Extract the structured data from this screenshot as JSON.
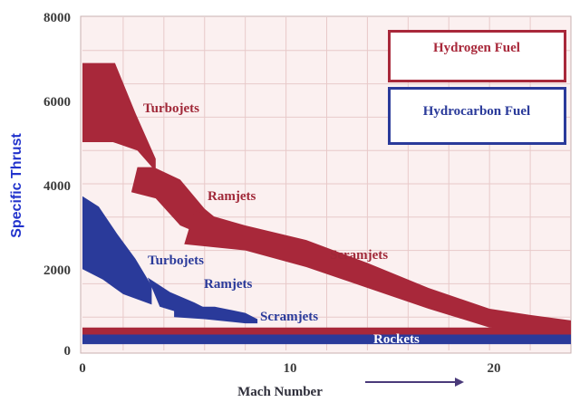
{
  "chart_data": {
    "type": "area",
    "title": "",
    "xlabel": "Mach Number",
    "ylabel": "Specific Thrust",
    "xlim": [
      0,
      24
    ],
    "ylim": [
      0,
      8000
    ],
    "x_ticks": [
      "0",
      "10",
      "20"
    ],
    "y_ticks": [
      "0",
      "2000",
      "4000",
      "6000",
      "8000"
    ],
    "grid": true,
    "legend_placement": "top-right",
    "legend": [
      {
        "name": "Hydrogen Fuel",
        "color": "#a8283a"
      },
      {
        "name": "Hydrocarbon Fuel",
        "color": "#2a3a9a"
      }
    ],
    "colors": {
      "background": "#fbf0f0",
      "grid": "#e8c9c9",
      "hydrogen": "#a8283a",
      "hydrocarbon": "#2a3a9a",
      "axis_title": "#2233cc"
    },
    "series": [
      {
        "fuel": "Hydrogen Fuel",
        "label": "Turbojets",
        "upper": [
          [
            0,
            6900
          ],
          [
            1.6,
            6900
          ],
          [
            2.6,
            5700
          ],
          [
            3.6,
            4600
          ]
        ],
        "lower": [
          [
            0,
            5000
          ],
          [
            1.5,
            5000
          ],
          [
            2.7,
            4800
          ],
          [
            3.6,
            4300
          ]
        ]
      },
      {
        "fuel": "Hydrogen Fuel",
        "label": "Ramjets",
        "upper": [
          [
            2.7,
            4400
          ],
          [
            3.5,
            4400
          ],
          [
            4.8,
            4100
          ],
          [
            6.0,
            3400
          ],
          [
            7.0,
            3000
          ]
        ],
        "lower": [
          [
            2.4,
            3800
          ],
          [
            3.6,
            3650
          ],
          [
            4.8,
            3000
          ],
          [
            6.0,
            2750
          ],
          [
            7.0,
            2700
          ]
        ]
      },
      {
        "fuel": "Hydrogen Fuel",
        "label": "Scramjets",
        "upper": [
          [
            5.5,
            3350
          ],
          [
            8,
            3000
          ],
          [
            11,
            2650
          ],
          [
            14,
            2100
          ],
          [
            17,
            1500
          ],
          [
            20,
            1000
          ],
          [
            22,
            850
          ],
          [
            24,
            720
          ]
        ],
        "lower": [
          [
            5.0,
            2550
          ],
          [
            8,
            2400
          ],
          [
            11,
            2000
          ],
          [
            14,
            1500
          ],
          [
            17,
            1000
          ],
          [
            20,
            550
          ],
          [
            22,
            470
          ],
          [
            24,
            420
          ]
        ]
      },
      {
        "fuel": "Hydrocarbon Fuel",
        "label": "Turbojets",
        "upper": [
          [
            0,
            3700
          ],
          [
            0.8,
            3450
          ],
          [
            1.7,
            2800
          ],
          [
            2.6,
            2200
          ],
          [
            3.4,
            1550
          ]
        ],
        "lower": [
          [
            0,
            1950
          ],
          [
            1.0,
            1700
          ],
          [
            2.0,
            1350
          ],
          [
            3.4,
            1100
          ]
        ]
      },
      {
        "fuel": "Hydrocarbon Fuel",
        "label": "Ramjets",
        "upper": [
          [
            3.2,
            1750
          ],
          [
            4.3,
            1400
          ],
          [
            5.5,
            1150
          ],
          [
            6.3,
            950
          ]
        ],
        "lower": [
          [
            3.8,
            1050
          ],
          [
            4.8,
            900
          ],
          [
            6.3,
            750
          ]
        ]
      },
      {
        "fuel": "Hydrocarbon Fuel",
        "label": "Scramjets",
        "upper": [
          [
            4.5,
            1050
          ],
          [
            6.5,
            1050
          ],
          [
            8.0,
            900
          ],
          [
            8.6,
            750
          ]
        ],
        "lower": [
          [
            4.5,
            800
          ],
          [
            6.0,
            750
          ],
          [
            8.0,
            650
          ],
          [
            8.6,
            650
          ]
        ]
      },
      {
        "fuel": "Hydrogen Fuel",
        "label": "Rockets",
        "band": [
          550,
          250
        ]
      },
      {
        "fuel": "Hydrocarbon Fuel",
        "label": "Rockets",
        "band": [
          380,
          150
        ]
      }
    ]
  }
}
